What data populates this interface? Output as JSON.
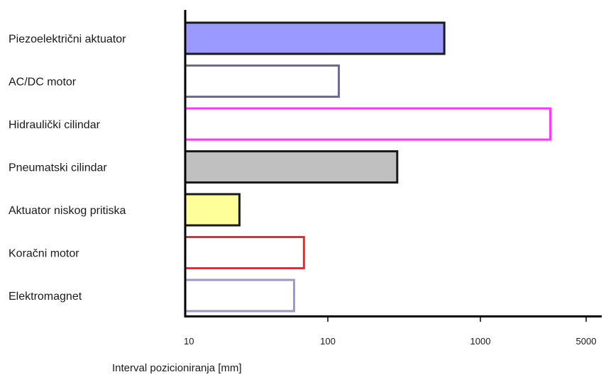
{
  "chart_data": {
    "type": "bar",
    "orientation": "horizontal",
    "x_scale": "log",
    "xlim": [
      10,
      5000
    ],
    "xticks": [
      10,
      100,
      1000,
      5000
    ],
    "xtick_labels": [
      "10",
      "100",
      "1000",
      "5000"
    ],
    "xlabel": "Interval pozicioniranja [mm]",
    "grid": false,
    "categories": [
      "Piezoelektrični aktuator",
      "AC/DC motor",
      "Hidraulički cilindar",
      "Pneumatski cilindar",
      "Aktuator niskog pritiska",
      "Koračni motor",
      "Elektromagnet"
    ],
    "values": [
      580,
      118,
      2900,
      285,
      24,
      68,
      58
    ],
    "bar_styles": [
      {
        "fill": "#9999ff",
        "stroke": "#1a1a1a"
      },
      {
        "fill": "#ffffff",
        "stroke": "#6b6b99"
      },
      {
        "fill": "#ffffff",
        "stroke": "#ff33ff"
      },
      {
        "fill": "#c0c0c0",
        "stroke": "#1a1a1a"
      },
      {
        "fill": "#ffff99",
        "stroke": "#1a1a1a"
      },
      {
        "fill": "#ffffff",
        "stroke": "#ff2222"
      },
      {
        "fill": "#ffffff",
        "stroke": "#9999cc"
      }
    ]
  }
}
